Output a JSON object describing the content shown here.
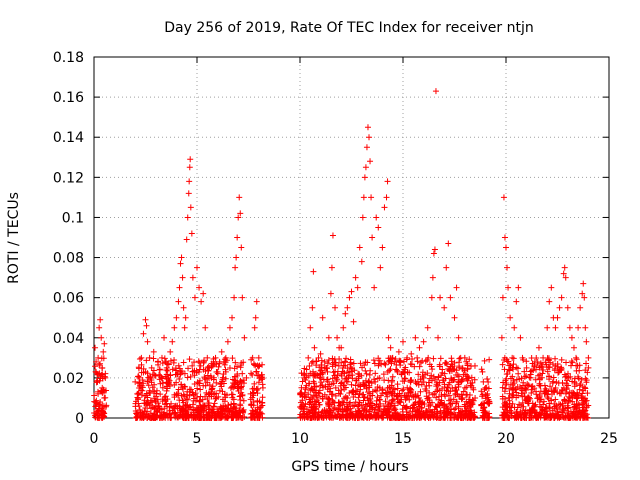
{
  "chart_data": {
    "type": "scatter",
    "title": "Day 256 of 2019, Rate Of TEC Index for receiver ntjn",
    "xlabel": "GPS time / hours",
    "ylabel": "ROTI / TECUs",
    "xlim": [
      0,
      25
    ],
    "ylim": [
      0,
      0.18
    ],
    "xticks": [
      0,
      5,
      10,
      15,
      20,
      25
    ],
    "xtick_labels": [
      "0",
      "5",
      "10",
      "15",
      "20",
      "25"
    ],
    "yticks": [
      0,
      0.02,
      0.04,
      0.06,
      0.08,
      0.1,
      0.12,
      0.14,
      0.16,
      0.18
    ],
    "ytick_labels": [
      "0",
      "0.02",
      "0.04",
      "0.06",
      "0.08",
      "0.1",
      "0.12",
      "0.14",
      "0.16",
      "0.18"
    ],
    "grid": true,
    "marker": "+",
    "color": "#ff0000",
    "points": [
      [
        0.05,
        0.035
      ],
      [
        0.1,
        0.028
      ],
      [
        0.15,
        0.022
      ],
      [
        0.2,
        0.03
      ],
      [
        0.25,
        0.045
      ],
      [
        0.3,
        0.049
      ],
      [
        0.35,
        0.04
      ],
      [
        0.4,
        0.025
      ],
      [
        0.45,
        0.033
      ],
      [
        0.5,
        0.037
      ],
      [
        0.55,
        0.02
      ],
      [
        0.2,
        0.012
      ],
      [
        0.3,
        0.008
      ],
      [
        0.4,
        0.015
      ],
      [
        0.1,
        0.006
      ],
      [
        0.5,
        0.01
      ],
      [
        2.0,
        0.018
      ],
      [
        2.1,
        0.012
      ],
      [
        2.2,
        0.02
      ],
      [
        2.3,
        0.03
      ],
      [
        2.4,
        0.042
      ],
      [
        2.5,
        0.049
      ],
      [
        2.55,
        0.046
      ],
      [
        2.6,
        0.038
      ],
      [
        2.7,
        0.03
      ],
      [
        2.8,
        0.025
      ],
      [
        2.9,
        0.033
      ],
      [
        3.0,
        0.021
      ],
      [
        3.1,
        0.028
      ],
      [
        3.2,
        0.024
      ],
      [
        3.3,
        0.03
      ],
      [
        3.4,
        0.04
      ],
      [
        3.5,
        0.028
      ],
      [
        3.6,
        0.02
      ],
      [
        3.7,
        0.033
      ],
      [
        3.8,
        0.038
      ],
      [
        3.9,
        0.045
      ],
      [
        4.0,
        0.05
      ],
      [
        4.1,
        0.058
      ],
      [
        4.15,
        0.065
      ],
      [
        4.2,
        0.077
      ],
      [
        4.25,
        0.08
      ],
      [
        4.3,
        0.07
      ],
      [
        4.35,
        0.055
      ],
      [
        4.4,
        0.045
      ],
      [
        4.45,
        0.05
      ],
      [
        4.5,
        0.089
      ],
      [
        4.55,
        0.1
      ],
      [
        4.6,
        0.112
      ],
      [
        4.62,
        0.118
      ],
      [
        4.65,
        0.125
      ],
      [
        4.67,
        0.129
      ],
      [
        4.7,
        0.105
      ],
      [
        4.75,
        0.092
      ],
      [
        4.8,
        0.07
      ],
      [
        4.9,
        0.06
      ],
      [
        5.0,
        0.075
      ],
      [
        5.1,
        0.065
      ],
      [
        5.2,
        0.058
      ],
      [
        5.3,
        0.062
      ],
      [
        5.4,
        0.045
      ],
      [
        5.5,
        0.03
      ],
      [
        5.6,
        0.025
      ],
      [
        5.7,
        0.02
      ],
      [
        5.8,
        0.028
      ],
      [
        5.9,
        0.03
      ],
      [
        6.0,
        0.023
      ],
      [
        6.1,
        0.028
      ],
      [
        6.2,
        0.033
      ],
      [
        6.3,
        0.028
      ],
      [
        6.4,
        0.03
      ],
      [
        6.5,
        0.038
      ],
      [
        6.6,
        0.045
      ],
      [
        6.7,
        0.05
      ],
      [
        6.8,
        0.06
      ],
      [
        6.85,
        0.075
      ],
      [
        6.9,
        0.08
      ],
      [
        6.95,
        0.09
      ],
      [
        7.0,
        0.1
      ],
      [
        7.05,
        0.11
      ],
      [
        7.1,
        0.102
      ],
      [
        7.15,
        0.085
      ],
      [
        7.2,
        0.06
      ],
      [
        7.3,
        0.04
      ],
      [
        7.4,
        0.02
      ],
      [
        7.6,
        0.012
      ],
      [
        7.7,
        0.03
      ],
      [
        7.8,
        0.045
      ],
      [
        7.85,
        0.05
      ],
      [
        7.9,
        0.058
      ],
      [
        8.0,
        0.03
      ],
      [
        8.1,
        0.02
      ],
      [
        8.2,
        0.015
      ],
      [
        7.75,
        0.008
      ],
      [
        8.05,
        0.005
      ],
      [
        10.0,
        0.012
      ],
      [
        10.2,
        0.02
      ],
      [
        10.4,
        0.03
      ],
      [
        10.5,
        0.045
      ],
      [
        10.6,
        0.055
      ],
      [
        10.65,
        0.073
      ],
      [
        10.7,
        0.035
      ],
      [
        10.9,
        0.03
      ],
      [
        11.0,
        0.032
      ],
      [
        11.1,
        0.05
      ],
      [
        11.2,
        0.028
      ],
      [
        11.3,
        0.025
      ],
      [
        11.4,
        0.04
      ],
      [
        11.5,
        0.062
      ],
      [
        11.55,
        0.075
      ],
      [
        11.6,
        0.091
      ],
      [
        11.7,
        0.055
      ],
      [
        11.8,
        0.04
      ],
      [
        11.9,
        0.035
      ],
      [
        12.0,
        0.035
      ],
      [
        12.1,
        0.045
      ],
      [
        12.2,
        0.052
      ],
      [
        12.3,
        0.055
      ],
      [
        12.4,
        0.06
      ],
      [
        12.5,
        0.063
      ],
      [
        12.6,
        0.048
      ],
      [
        12.7,
        0.07
      ],
      [
        12.8,
        0.065
      ],
      [
        12.9,
        0.085
      ],
      [
        13.0,
        0.078
      ],
      [
        13.05,
        0.1
      ],
      [
        13.1,
        0.11
      ],
      [
        13.15,
        0.12
      ],
      [
        13.2,
        0.125
      ],
      [
        13.25,
        0.135
      ],
      [
        13.3,
        0.145
      ],
      [
        13.35,
        0.14
      ],
      [
        13.4,
        0.128
      ],
      [
        13.45,
        0.11
      ],
      [
        13.5,
        0.09
      ],
      [
        13.6,
        0.065
      ],
      [
        13.7,
        0.1
      ],
      [
        13.8,
        0.095
      ],
      [
        13.9,
        0.075
      ],
      [
        14.0,
        0.085
      ],
      [
        14.1,
        0.105
      ],
      [
        14.2,
        0.11
      ],
      [
        14.25,
        0.118
      ],
      [
        14.3,
        0.04
      ],
      [
        14.4,
        0.035
      ],
      [
        14.5,
        0.03
      ],
      [
        14.6,
        0.028
      ],
      [
        14.8,
        0.033
      ],
      [
        15.0,
        0.038
      ],
      [
        15.2,
        0.03
      ],
      [
        15.4,
        0.032
      ],
      [
        15.6,
        0.04
      ],
      [
        15.8,
        0.035
      ],
      [
        16.0,
        0.038
      ],
      [
        16.2,
        0.045
      ],
      [
        16.4,
        0.06
      ],
      [
        16.45,
        0.07
      ],
      [
        16.5,
        0.082
      ],
      [
        16.55,
        0.084
      ],
      [
        16.6,
        0.163
      ],
      [
        16.7,
        0.04
      ],
      [
        16.8,
        0.06
      ],
      [
        17.0,
        0.055
      ],
      [
        17.1,
        0.075
      ],
      [
        17.2,
        0.087
      ],
      [
        17.3,
        0.06
      ],
      [
        17.5,
        0.05
      ],
      [
        17.6,
        0.065
      ],
      [
        17.7,
        0.04
      ],
      [
        17.8,
        0.03
      ],
      [
        17.9,
        0.025
      ],
      [
        18.0,
        0.03
      ],
      [
        18.2,
        0.02
      ],
      [
        18.4,
        0.015
      ],
      [
        18.5,
        0.01
      ],
      [
        18.9,
        0.018
      ],
      [
        19.0,
        0.015
      ],
      [
        19.1,
        0.012
      ],
      [
        19.2,
        0.008
      ],
      [
        19.8,
        0.04
      ],
      [
        19.85,
        0.06
      ],
      [
        19.9,
        0.11
      ],
      [
        19.95,
        0.09
      ],
      [
        20.0,
        0.085
      ],
      [
        20.05,
        0.075
      ],
      [
        20.1,
        0.065
      ],
      [
        20.2,
        0.05
      ],
      [
        20.3,
        0.03
      ],
      [
        20.4,
        0.045
      ],
      [
        20.5,
        0.058
      ],
      [
        20.6,
        0.065
      ],
      [
        20.7,
        0.04
      ],
      [
        20.8,
        0.03
      ],
      [
        21.0,
        0.025
      ],
      [
        21.2,
        0.02
      ],
      [
        21.4,
        0.028
      ],
      [
        21.6,
        0.035
      ],
      [
        21.8,
        0.03
      ],
      [
        22.0,
        0.045
      ],
      [
        22.1,
        0.058
      ],
      [
        22.2,
        0.065
      ],
      [
        22.3,
        0.05
      ],
      [
        22.4,
        0.045
      ],
      [
        22.5,
        0.05
      ],
      [
        22.6,
        0.055
      ],
      [
        22.7,
        0.06
      ],
      [
        22.8,
        0.072
      ],
      [
        22.85,
        0.075
      ],
      [
        22.9,
        0.07
      ],
      [
        23.0,
        0.055
      ],
      [
        23.1,
        0.045
      ],
      [
        23.2,
        0.04
      ],
      [
        23.3,
        0.035
      ],
      [
        23.4,
        0.03
      ],
      [
        23.5,
        0.045
      ],
      [
        23.6,
        0.055
      ],
      [
        23.7,
        0.062
      ],
      [
        23.75,
        0.067
      ],
      [
        23.8,
        0.06
      ],
      [
        23.85,
        0.045
      ],
      [
        23.9,
        0.038
      ],
      [
        24.0,
        0.03
      ],
      [
        24.0,
        0.025
      ]
    ]
  }
}
